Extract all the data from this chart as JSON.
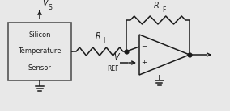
{
  "bg_color": "#e8e8e8",
  "line_color": "#1a1a1a",
  "box_fill": "#e8e8e8",
  "box_edge": "#555555",
  "figsize": [
    2.84,
    1.38
  ],
  "dpi": 100,
  "sensor_text": [
    "Silicon",
    "Temperature",
    "Sensor"
  ],
  "vs_label": "V",
  "vs_sub": "S",
  "vref_label": "V",
  "vref_sub": "REF",
  "ri_label": "R",
  "ri_sub": "I",
  "rf_label": "R",
  "rf_sub": "F",
  "lw": 1.1
}
